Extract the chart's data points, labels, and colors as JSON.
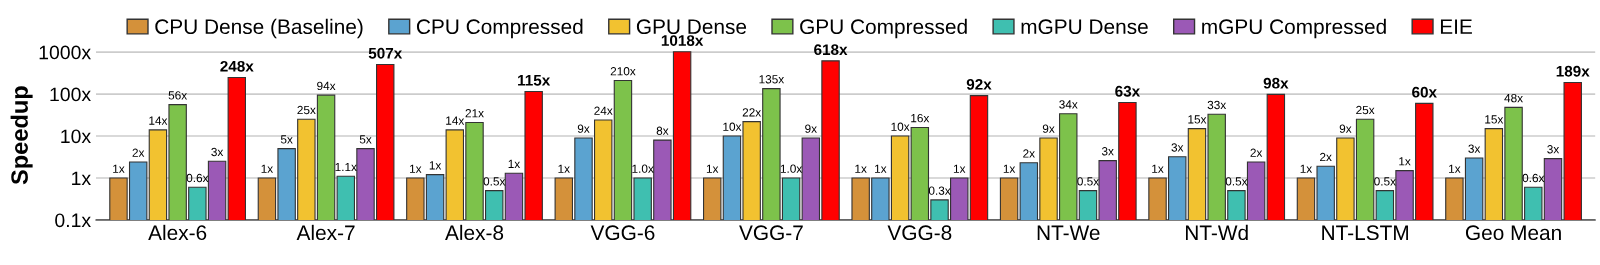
{
  "chart_data": {
    "type": "bar",
    "ylabel": "Speedup",
    "log": true,
    "grid": "y",
    "legend": "top",
    "categories": [
      "Alex-6",
      "Alex-7",
      "Alex-8",
      "VGG-6",
      "VGG-7",
      "VGG-8",
      "NT-We",
      "NT-Wd",
      "NT-LSTM",
      "Geo Mean"
    ],
    "ylim": [
      0.1,
      1100
    ],
    "yticks": [
      {
        "value": 0.1,
        "label": "0.1x"
      },
      {
        "value": 1,
        "label": "1x"
      },
      {
        "value": 10,
        "label": "10x"
      },
      {
        "value": 100,
        "label": "100x"
      },
      {
        "value": 1000,
        "label": "1000x"
      }
    ],
    "series": [
      {
        "name": "CPU Dense (Baseline)",
        "color": "#d4913a",
        "values": [
          1,
          1,
          1,
          1,
          1,
          1,
          1,
          1,
          1,
          1
        ],
        "value_labels": [
          "1x",
          "1x",
          "1x",
          "1x",
          "1x",
          "1x",
          "1x",
          "1x",
          "1x",
          "1x"
        ]
      },
      {
        "name": "CPU Compressed",
        "color": "#5ba3d0",
        "values": [
          2.4,
          5,
          1.2,
          9,
          10,
          1.0,
          2.3,
          3.2,
          1.9,
          3.0
        ],
        "value_labels": [
          "2x",
          "5x",
          "1x",
          "9x",
          "10x",
          "1x",
          "2x",
          "3x",
          "2x",
          "3x"
        ]
      },
      {
        "name": "GPU Dense",
        "color": "#f2c230",
        "values": [
          14,
          25,
          14,
          24,
          22,
          10,
          9,
          15,
          9,
          15
        ],
        "value_labels": [
          "14x",
          "25x",
          "14x",
          "24x",
          "22x",
          "10x",
          "9x",
          "15x",
          "9x",
          "15x"
        ]
      },
      {
        "name": "GPU Compressed",
        "color": "#7dc24b",
        "values": [
          56,
          94,
          21,
          210,
          135,
          16,
          34,
          33,
          25,
          48
        ],
        "value_labels": [
          "56x",
          "94x",
          "21x",
          "210x",
          "135x",
          "16x",
          "34x",
          "33x",
          "25x",
          "48x"
        ]
      },
      {
        "name": "mGPU Dense",
        "color": "#3fbfb0",
        "values": [
          0.6,
          1.1,
          0.5,
          1.0,
          1.0,
          0.3,
          0.5,
          0.5,
          0.5,
          0.6
        ],
        "value_labels": [
          "0.6x",
          "1.1x",
          "0.5x",
          "1.0x",
          "1.0x",
          "0.3x",
          "0.5x",
          "0.5x",
          "0.5x",
          "0.6x"
        ]
      },
      {
        "name": "mGPU Compressed",
        "color": "#9b59b6",
        "values": [
          2.5,
          5,
          1.3,
          8,
          9,
          1.0,
          2.6,
          2.4,
          1.5,
          2.9
        ],
        "value_labels": [
          "3x",
          "5x",
          "1x",
          "8x",
          "9x",
          "1x",
          "3x",
          "2x",
          "1x",
          "3x"
        ]
      },
      {
        "name": "EIE",
        "color": "#ff0000",
        "values": [
          248,
          507,
          115,
          1018,
          618,
          92,
          63,
          98,
          60,
          189
        ],
        "value_labels": [
          "248x",
          "507x",
          "115x",
          "1018x",
          "618x",
          "92x",
          "63x",
          "98x",
          "60x",
          "189x"
        ]
      }
    ]
  }
}
